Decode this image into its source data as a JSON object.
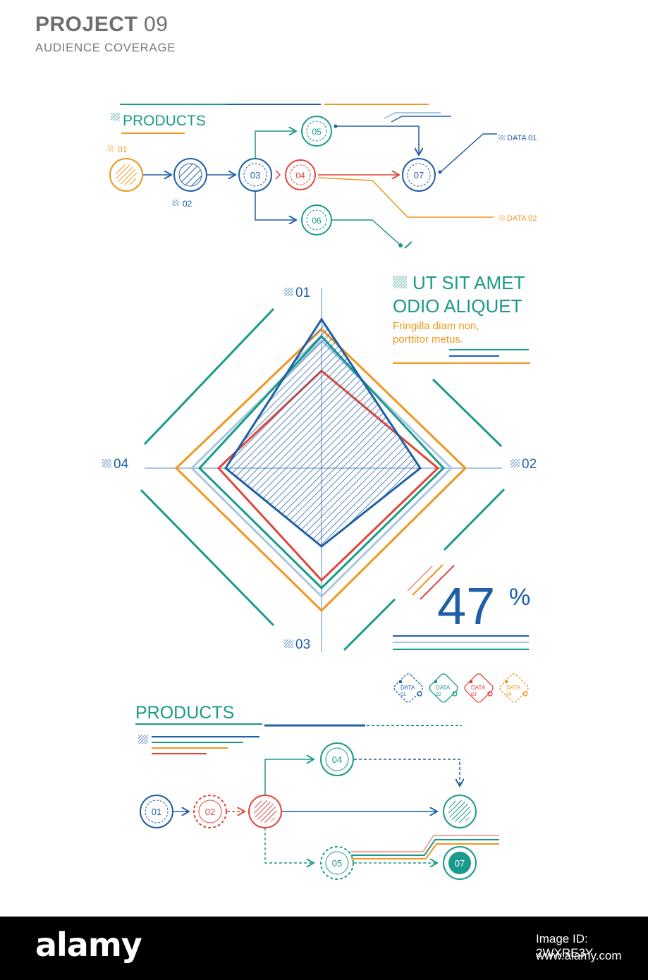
{
  "header": {
    "title_bold": "PROJECT",
    "title_num": "09",
    "subtitle": "AUDIENCE COVERAGE"
  },
  "colors": {
    "teal": "#1a9a8a",
    "blue": "#1f5fa8",
    "orange": "#f0961e",
    "red": "#e0453a",
    "lightblue": "#a9c6e4",
    "pink": "#f2a5a0",
    "grey": "#7a7a7a"
  },
  "top_flow": {
    "heading": "PRODUCTS",
    "tag_01": "01",
    "tag_02": "02",
    "node_03": "03",
    "node_04": "04",
    "node_05": "05",
    "node_06": "06",
    "node_07": "07",
    "data_01": "DATA 01",
    "data_02": "DATA 02"
  },
  "radar": {
    "axis_01": "01",
    "axis_02": "02",
    "axis_03": "03",
    "axis_04": "04"
  },
  "side_text": {
    "heading_1": "UT SIT AMET",
    "heading_2": "ODIO ALIQUET",
    "body_1": "Fringilla diam non,",
    "body_2": "porttitor metus."
  },
  "stat": {
    "value": "47",
    "unit": "%"
  },
  "legend": [
    {
      "label": "DATA",
      "num": "01",
      "color": "#1f5fa8"
    },
    {
      "label": "DATA",
      "num": "02",
      "color": "#1a9a8a"
    },
    {
      "label": "DATA",
      "num": "03",
      "color": "#e0453a"
    },
    {
      "label": "DATA",
      "num": "04",
      "color": "#f0961e"
    }
  ],
  "bottom_flow": {
    "heading": "PRODUCTS",
    "node_01": "01",
    "node_02": "02",
    "node_04": "04",
    "node_05": "05",
    "node_07": "07"
  },
  "footer": {
    "logo": "alamy",
    "image_id": "Image ID: 2WXRE3Y",
    "url": "www.alamy.com"
  }
}
